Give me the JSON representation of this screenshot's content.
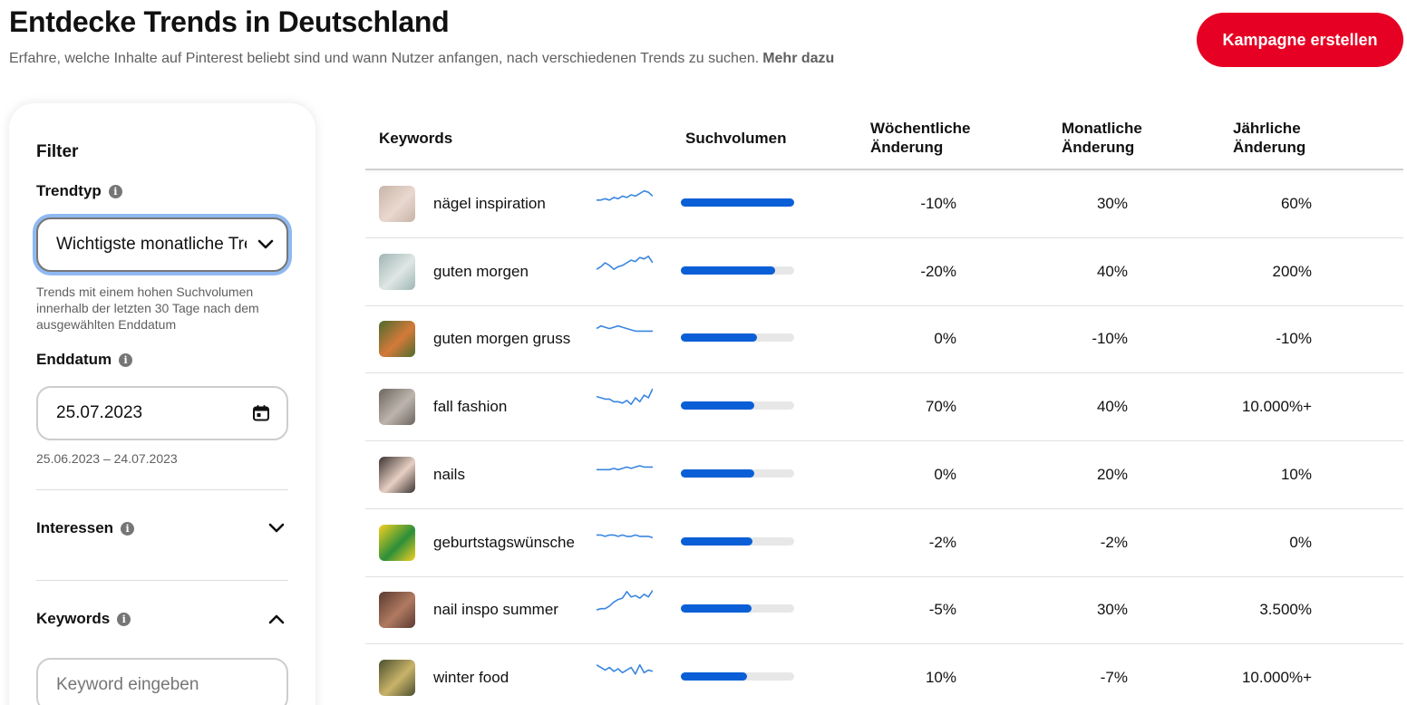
{
  "header": {
    "title": "Entdecke Trends in Deutschland",
    "subtitle": "Erfahre, welche Inhalte auf Pinterest beliebt sind und wann Nutzer anfangen, nach verschiedenen Trends zu suchen.",
    "more_link": "Mehr dazu",
    "cta_label": "Kampagne erstellen",
    "cta_color": "#e60023"
  },
  "filter": {
    "title": "Filter",
    "trend_type": {
      "label": "Trendtyp",
      "selected": "Wichtigste monatliche Trends",
      "hint": "Trends mit einem hohen Suchvolumen innerhalb der letzten 30 Tage nach dem ausgewählten Enddatum"
    },
    "end_date": {
      "label": "Enddatum",
      "value": "25.07.2023",
      "range": "25.06.2023 – 24.07.2023"
    },
    "interests": {
      "label": "Interessen"
    },
    "keywords": {
      "label": "Keywords",
      "placeholder": "Keyword eingeben"
    }
  },
  "table": {
    "headers": {
      "keywords": "Keywords",
      "volume": "Suchvolumen",
      "weekly_1": "Wöchentliche",
      "weekly_2": "Änderung",
      "monthly_1": "Monatliche",
      "monthly_2": "Änderung",
      "yearly_1": "Jährliche",
      "yearly_2": "Änderung"
    },
    "accent_color": "#0a5fd7",
    "rows": [
      {
        "keyword": "nägel inspiration",
        "volume_fraction": 1.0,
        "weekly": "-10%",
        "monthly": "30%",
        "yearly": "60%",
        "trend": [
          5,
          5,
          6,
          5,
          7,
          6,
          8,
          7,
          9,
          8,
          10,
          12,
          11,
          8
        ],
        "thumb": [
          "#c8b4a8",
          "#e9d8cf"
        ]
      },
      {
        "keyword": "guten morgen",
        "volume_fraction": 0.83,
        "weekly": "-20%",
        "monthly": "40%",
        "yearly": "200%",
        "trend": [
          4,
          6,
          9,
          7,
          4,
          6,
          7,
          9,
          11,
          10,
          13,
          12,
          14,
          9
        ],
        "thumb": [
          "#9fb6b3",
          "#dfe6e4"
        ]
      },
      {
        "keyword": "guten morgen gruss",
        "volume_fraction": 0.67,
        "weekly": "0%",
        "monthly": "-10%",
        "yearly": "-10%",
        "trend": [
          10,
          12,
          11,
          10,
          11,
          12,
          11,
          10,
          9,
          8,
          8,
          8,
          8,
          8
        ],
        "thumb": [
          "#4d6b2e",
          "#d47a3a"
        ]
      },
      {
        "keyword": "fall fashion",
        "volume_fraction": 0.65,
        "weekly": "70%",
        "monthly": "40%",
        "yearly": "10.000%+",
        "trend": [
          10,
          9,
          8,
          8,
          6,
          6,
          5,
          7,
          4,
          9,
          6,
          11,
          9,
          16
        ],
        "thumb": [
          "#6c655e",
          "#bdb5ad"
        ]
      },
      {
        "keyword": "nails",
        "volume_fraction": 0.65,
        "weekly": "0%",
        "monthly": "20%",
        "yearly": "10%",
        "trend": [
          6,
          6,
          6,
          6,
          7,
          6,
          7,
          8,
          7,
          8,
          9,
          8,
          8,
          8
        ],
        "thumb": [
          "#3c3430",
          "#e7cfc4"
        ]
      },
      {
        "keyword": "geburtstagswünsche",
        "volume_fraction": 0.63,
        "weekly": "-2%",
        "monthly": "-2%",
        "yearly": "0%",
        "trend": [
          8,
          8,
          7,
          8,
          8,
          7,
          8,
          7,
          7,
          8,
          7,
          7,
          7,
          6
        ],
        "thumb": [
          "#f5d020",
          "#2c8f3a"
        ]
      },
      {
        "keyword": "nail inspo summer",
        "volume_fraction": 0.62,
        "weekly": "-5%",
        "monthly": "30%",
        "yearly": "3.500%",
        "trend": [
          2,
          3,
          3,
          5,
          8,
          10,
          11,
          16,
          12,
          13,
          11,
          14,
          12,
          17
        ],
        "thumb": [
          "#5a3a30",
          "#b07a60"
        ]
      },
      {
        "keyword": "winter food",
        "volume_fraction": 0.58,
        "weekly": "10%",
        "monthly": "-7%",
        "yearly": "10.000%+",
        "trend": [
          12,
          10,
          8,
          10,
          7,
          9,
          6,
          8,
          10,
          5,
          12,
          6,
          8,
          7
        ],
        "thumb": [
          "#4a4f2e",
          "#c9b36a"
        ]
      }
    ]
  }
}
